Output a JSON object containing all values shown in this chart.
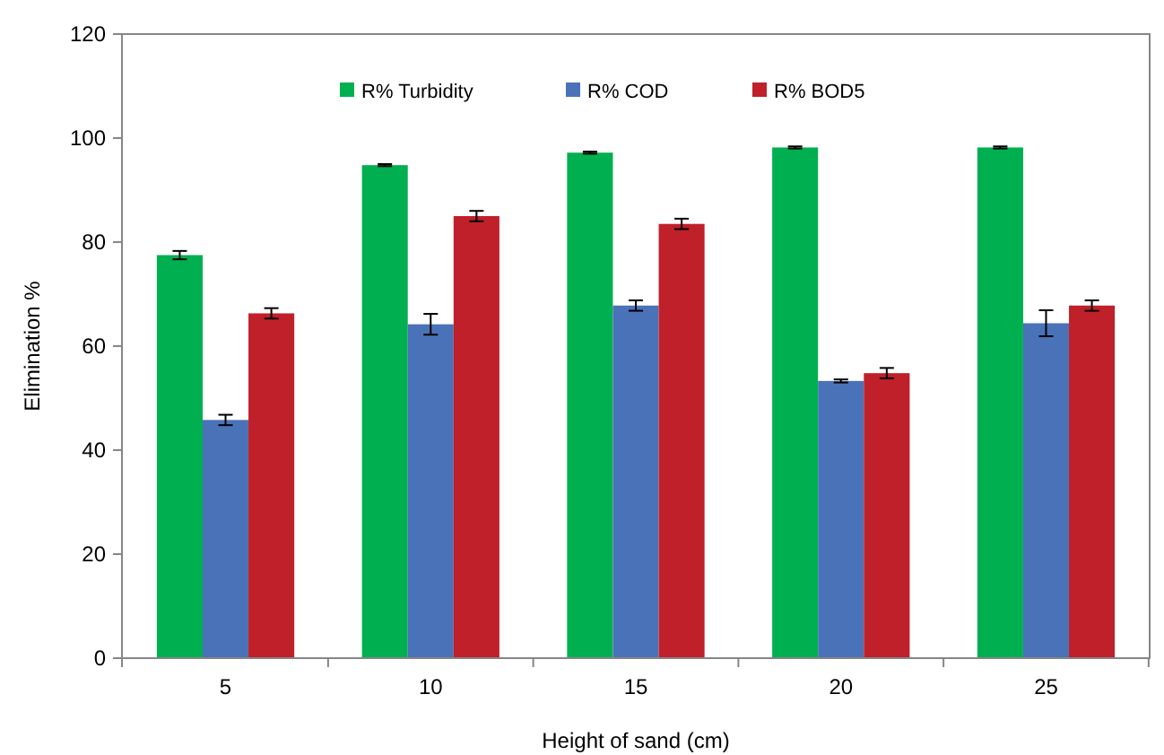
{
  "chart_data": {
    "type": "bar",
    "xlabel": "Height of sand (cm)",
    "ylabel": "Elimination %",
    "categories": [
      "5",
      "10",
      "15",
      "20",
      "25"
    ],
    "series": [
      {
        "name": "R% Turbidity",
        "color": "#00b050",
        "values": [
          77.5,
          94.8,
          97.2,
          98.2,
          98.2
        ],
        "errors": [
          0.8,
          0.2,
          0.2,
          0.2,
          0.2
        ]
      },
      {
        "name": "R% COD",
        "color": "#4a72b8",
        "values": [
          45.8,
          64.2,
          67.8,
          53.3,
          64.4
        ],
        "errors": [
          1.0,
          2.0,
          1.0,
          0.3,
          2.5
        ]
      },
      {
        "name": "R% BOD5",
        "color": "#c0202a",
        "values": [
          66.3,
          85.0,
          83.5,
          54.8,
          67.8
        ],
        "errors": [
          1.0,
          1.0,
          1.0,
          1.0,
          1.0
        ]
      }
    ],
    "ylim": [
      0,
      120
    ],
    "yticks": [
      0,
      20,
      40,
      60,
      80,
      100,
      120
    ],
    "grid": false,
    "legend": "top"
  }
}
